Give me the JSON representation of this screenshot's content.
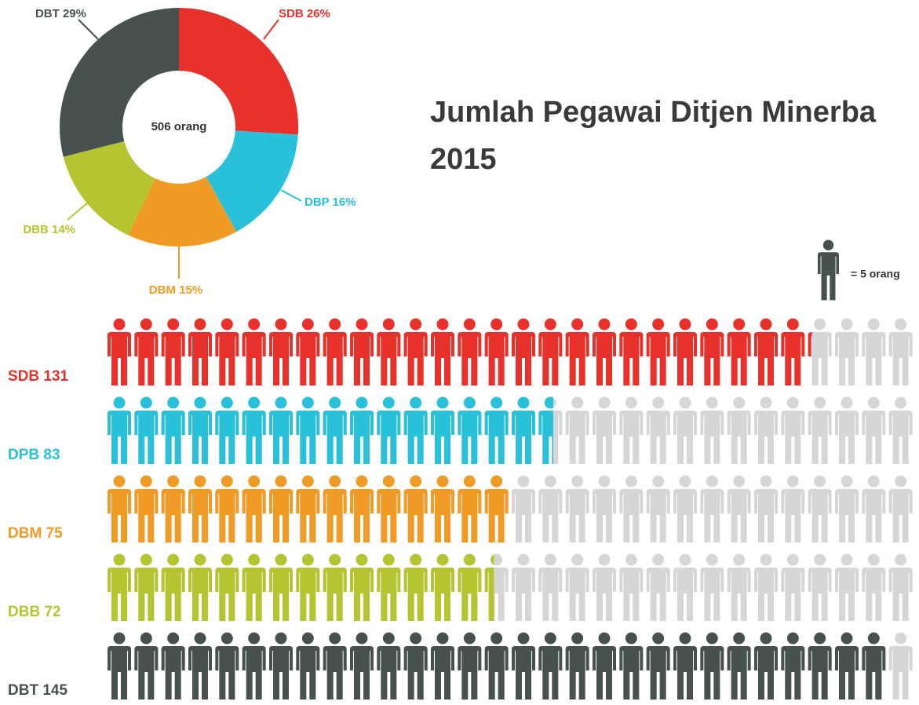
{
  "chart_data": [
    {
      "type": "donut",
      "center_label": "506 orang",
      "values": [
        26,
        16,
        15,
        14,
        29
      ],
      "value_labels": [
        "SDB 26%",
        "DBP 16%",
        "DBM 15%",
        "DBB 14%",
        "DBT 29%"
      ],
      "colors": [
        "#e8312a",
        "#29c0d9",
        "#f19b27",
        "#b5c531",
        "#47524e"
      ]
    },
    {
      "type": "pictograph",
      "title": [
        "Jumlah Pegawai Ditjen Minerba",
        "2015"
      ],
      "unit_value": 5,
      "unit_label": "= 5 orang",
      "unit_color": "#47524e",
      "xlim": [
        0,
        150
      ],
      "empty_color": "#d6d6d6",
      "series": [
        {
          "name": "SDB 131",
          "color": "#e8312a",
          "values": [
            131
          ]
        },
        {
          "name": "DPB 83",
          "color": "#29c0d9",
          "values": [
            83
          ]
        },
        {
          "name": "DBM 75",
          "color": "#f19b27",
          "values": [
            75
          ]
        },
        {
          "name": "DBB 72",
          "color": "#b5c531",
          "values": [
            72
          ]
        },
        {
          "name": "DBT 145",
          "color": "#47524e",
          "values": [
            145
          ]
        }
      ]
    }
  ]
}
